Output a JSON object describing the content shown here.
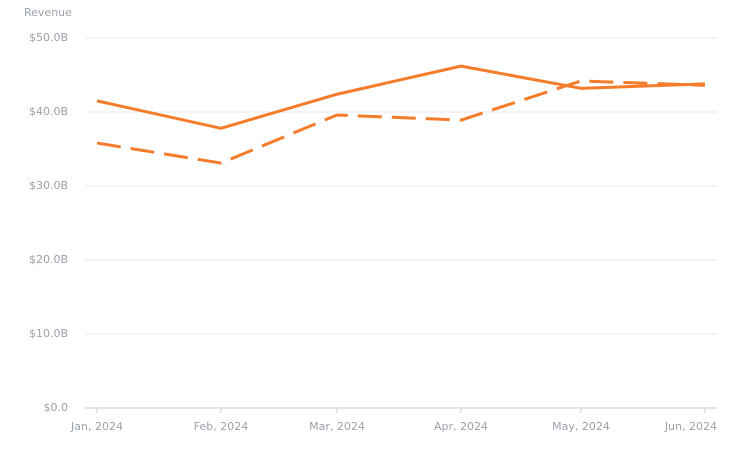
{
  "chart_data": {
    "type": "line",
    "y_label": "Revenue",
    "x": [
      "Jan, 2024",
      "Feb, 2024",
      "Mar, 2024",
      "Apr, 2024",
      "May, 2024",
      "Jun, 2024"
    ],
    "series": [
      {
        "color": "#f47c2a",
        "line_style": "solid",
        "values": [
          41.5,
          37.8,
          42.4,
          46.2,
          43.2,
          43.8
        ]
      },
      {
        "color": "#f47c2a",
        "line_style": "dashed",
        "values": [
          35.8,
          33.1,
          39.6,
          38.9,
          44.2,
          43.6
        ]
      }
    ],
    "ylim": [
      0,
      50
    ],
    "yticks": [
      {
        "value": 0,
        "label": "$0.0"
      },
      {
        "value": 10,
        "label": "$10.0B"
      },
      {
        "value": 20,
        "label": "$20.0B"
      },
      {
        "value": 30,
        "label": "$30.0B"
      },
      {
        "value": 40,
        "label": "$40.0B"
      },
      {
        "value": 50,
        "label": "$50.0B"
      }
    ],
    "grid": true
  }
}
